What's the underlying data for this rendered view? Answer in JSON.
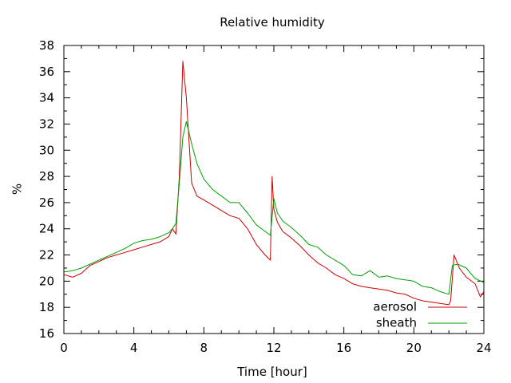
{
  "chart_data": {
    "type": "line",
    "title": "Relative humidity",
    "xlabel": "Time [hour]",
    "ylabel": "%",
    "xlim": [
      0,
      24
    ],
    "ylim": [
      16,
      38
    ],
    "xticks": [
      "0",
      "4",
      "8",
      "12",
      "16",
      "20",
      "24"
    ],
    "yticks": [
      "16",
      "18",
      "20",
      "22",
      "24",
      "26",
      "28",
      "30",
      "32",
      "34",
      "36",
      "38"
    ],
    "grid": false,
    "legend_position": "bottom-right",
    "series": [
      {
        "name": "aerosol",
        "color": "#cc0000",
        "x": [
          0,
          0.5,
          1,
          1.5,
          2,
          2.5,
          3,
          3.5,
          4,
          4.5,
          5,
          5.5,
          6,
          6.2,
          6.4,
          6.6,
          6.8,
          7,
          7.3,
          7.6,
          8,
          8.5,
          9,
          9.5,
          10,
          10.5,
          11,
          11.5,
          11.8,
          11.9,
          12,
          12.2,
          12.5,
          13,
          13.5,
          14,
          14.5,
          15,
          15.5,
          16,
          16.5,
          17,
          17.5,
          18,
          18.5,
          19,
          19.5,
          20,
          20.5,
          21,
          21.5,
          22,
          22.1,
          22.3,
          22.6,
          23,
          23.5,
          23.8,
          24
        ],
        "y": [
          20.5,
          20.3,
          20.6,
          21.2,
          21.5,
          21.8,
          22.0,
          22.2,
          22.4,
          22.6,
          22.8,
          23.0,
          23.4,
          24.0,
          23.6,
          28.0,
          36.8,
          34.0,
          27.5,
          26.5,
          26.2,
          25.8,
          25.4,
          25.0,
          24.8,
          24.0,
          22.8,
          22.0,
          21.6,
          28.0,
          25.5,
          24.5,
          23.8,
          23.3,
          22.7,
          22.0,
          21.4,
          21.0,
          20.5,
          20.2,
          19.8,
          19.6,
          19.5,
          19.4,
          19.3,
          19.1,
          19.0,
          18.7,
          18.5,
          18.4,
          18.3,
          18.2,
          18.5,
          22.0,
          21.0,
          20.3,
          19.8,
          18.8,
          19.2
        ]
      },
      {
        "name": "sheath",
        "color": "#00a000",
        "x": [
          0,
          0.5,
          1,
          1.5,
          2,
          2.5,
          3,
          3.5,
          4,
          4.5,
          5,
          5.5,
          6,
          6.2,
          6.4,
          6.6,
          6.8,
          7,
          7.3,
          7.6,
          8,
          8.5,
          9,
          9.5,
          10,
          10.5,
          11,
          11.5,
          11.8,
          12,
          12.2,
          12.5,
          13,
          13.5,
          14,
          14.5,
          15,
          15.5,
          16,
          16.5,
          17,
          17.5,
          18,
          18.5,
          19,
          19.5,
          20,
          20.5,
          21,
          21.5,
          22,
          22.2,
          22.5,
          23,
          23.5,
          24
        ],
        "y": [
          20.7,
          20.8,
          21.0,
          21.3,
          21.6,
          21.9,
          22.2,
          22.5,
          22.9,
          23.1,
          23.2,
          23.4,
          23.7,
          24.0,
          24.4,
          27.5,
          31.0,
          32.2,
          30.5,
          29.0,
          27.8,
          27.0,
          26.5,
          26.0,
          26.0,
          25.2,
          24.3,
          23.8,
          23.5,
          26.3,
          25.2,
          24.6,
          24.1,
          23.5,
          22.8,
          22.6,
          22.0,
          21.6,
          21.2,
          20.5,
          20.4,
          20.8,
          20.3,
          20.4,
          20.2,
          20.1,
          20.0,
          19.6,
          19.5,
          19.2,
          19.0,
          21.2,
          21.3,
          21.0,
          20.2,
          19.9
        ]
      }
    ]
  }
}
